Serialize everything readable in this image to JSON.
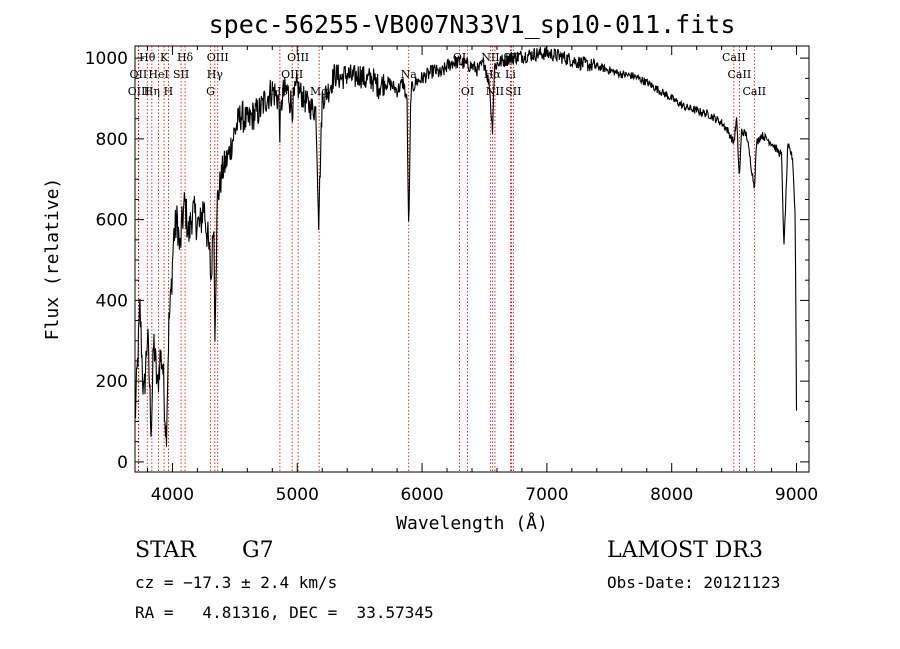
{
  "chart_data": {
    "type": "line",
    "title": "spec-56255-VB007N33V1_sp10-011.fits",
    "xlabel": "Wavelength (Å)",
    "ylabel": "Flux (relative)",
    "xlim": [
      3700,
      9100
    ],
    "ylim": [
      -25,
      1030
    ],
    "xticks": [
      4000,
      5000,
      6000,
      7000,
      8000,
      9000
    ],
    "yticks": [
      0,
      200,
      400,
      600,
      800,
      1000
    ],
    "grid": false,
    "series": [
      {
        "name": "flux",
        "x": [
          3700,
          3740,
          3770,
          3800,
          3830,
          3850,
          3880,
          3900,
          3920,
          3950,
          3970,
          3990,
          4010,
          4040,
          4060,
          4080,
          4100,
          4130,
          4160,
          4190,
          4220,
          4250,
          4280,
          4300,
          4310,
          4330,
          4340,
          4360,
          4400,
          4450,
          4500,
          4550,
          4600,
          4650,
          4700,
          4750,
          4800,
          4850,
          4861,
          4880,
          4920,
          4960,
          5000,
          5050,
          5100,
          5150,
          5172,
          5200,
          5250,
          5300,
          5350,
          5400,
          5450,
          5500,
          5550,
          5600,
          5650,
          5700,
          5750,
          5800,
          5850,
          5880,
          5890,
          5896,
          5910,
          5950,
          6000,
          6050,
          6100,
          6150,
          6200,
          6250,
          6300,
          6350,
          6400,
          6450,
          6500,
          6540,
          6563,
          6580,
          6620,
          6700,
          6800,
          6900,
          7000,
          7100,
          7200,
          7300,
          7400,
          7500,
          7600,
          7700,
          7800,
          7900,
          8000,
          8100,
          8200,
          8300,
          8400,
          8450,
          8498,
          8520,
          8542,
          8560,
          8600,
          8662,
          8680,
          8720,
          8760,
          8800,
          8850,
          8880,
          8900,
          8930,
          8950,
          8970,
          8990,
          9000
        ],
        "y": [
          100,
          380,
          150,
          320,
          80,
          300,
          180,
          260,
          250,
          60,
          330,
          420,
          560,
          600,
          520,
          600,
          640,
          560,
          620,
          600,
          580,
          640,
          560,
          500,
          440,
          620,
          330,
          650,
          720,
          760,
          820,
          860,
          840,
          860,
          870,
          900,
          920,
          900,
          820,
          910,
          920,
          880,
          930,
          900,
          880,
          870,
          600,
          900,
          920,
          960,
          950,
          960,
          950,
          960,
          945,
          950,
          930,
          940,
          935,
          920,
          940,
          890,
          600,
          610,
          920,
          940,
          950,
          960,
          970,
          960,
          980,
          990,
          990,
          985,
          980,
          970,
          990,
          930,
          820,
          980,
          990,
          1000,
          1005,
          1010,
          1012,
          1005,
          995,
          985,
          980,
          970,
          960,
          955,
          940,
          920,
          900,
          880,
          870,
          860,
          840,
          820,
          790,
          850,
          700,
          820,
          810,
          680,
          790,
          810,
          800,
          790,
          770,
          760,
          530,
          780,
          770,
          750,
          600,
          130
        ]
      }
    ],
    "lines": [
      {
        "name": "Hθ",
        "wave": 3798,
        "row": 1
      },
      {
        "name": "OII",
        "wave": 3727,
        "row": 2
      },
      {
        "name": "OIII",
        "wave": 3730,
        "row": 3
      },
      {
        "name": "K",
        "wave": 3933,
        "row": 1
      },
      {
        "name": "HeI",
        "wave": 3889,
        "row": 2
      },
      {
        "name": "Hη",
        "wave": 3835,
        "row": 3
      },
      {
        "name": "Hδ",
        "wave": 4101,
        "row": 1
      },
      {
        "name": "SII",
        "wave": 4069,
        "row": 2
      },
      {
        "name": "H",
        "wave": 3968,
        "row": 3
      },
      {
        "name": "OIII",
        "wave": 4363,
        "row": 1
      },
      {
        "name": "Hγ",
        "wave": 4340,
        "row": 2
      },
      {
        "name": "G",
        "wave": 4305,
        "row": 3
      },
      {
        "name": "OIII",
        "wave": 5007,
        "row": 1
      },
      {
        "name": "OIII",
        "wave": 4959,
        "row": 2
      },
      {
        "name": "Hβ",
        "wave": 4861,
        "row": 3
      },
      {
        "name": "Mg",
        "wave": 5175,
        "row": 3
      },
      {
        "name": "Na",
        "wave": 5893,
        "row": 2
      },
      {
        "name": "OI",
        "wave": 6300,
        "row": 1
      },
      {
        "name": "OI",
        "wave": 6364,
        "row": 3
      },
      {
        "name": "NII",
        "wave": 6548,
        "row": 1
      },
      {
        "name": "SII",
        "wave": 6716,
        "row": 1
      },
      {
        "name": "Hα",
        "wave": 6563,
        "row": 2
      },
      {
        "name": "Li",
        "wave": 6708,
        "row": 2
      },
      {
        "name": "NII",
        "wave": 6584,
        "row": 3
      },
      {
        "name": "SII",
        "wave": 6731,
        "row": 3
      },
      {
        "name": "CaII",
        "wave": 8498,
        "row": 1
      },
      {
        "name": "CaII",
        "wave": 8542,
        "row": 2
      },
      {
        "name": "CaII",
        "wave": 8662,
        "row": 3
      }
    ]
  },
  "info": {
    "object_class": "STAR",
    "subclass": "G7",
    "survey": "LAMOST DR3",
    "redshift": "cz = −17.3 ± 2.4 km/s",
    "obs_date": "Obs-Date: 20121123",
    "coords": "RA =   4.81316, DEC =  33.57345"
  },
  "colors": {
    "axis": "#000000",
    "spectrum": "#000000",
    "line_marker": "#cc0000"
  }
}
